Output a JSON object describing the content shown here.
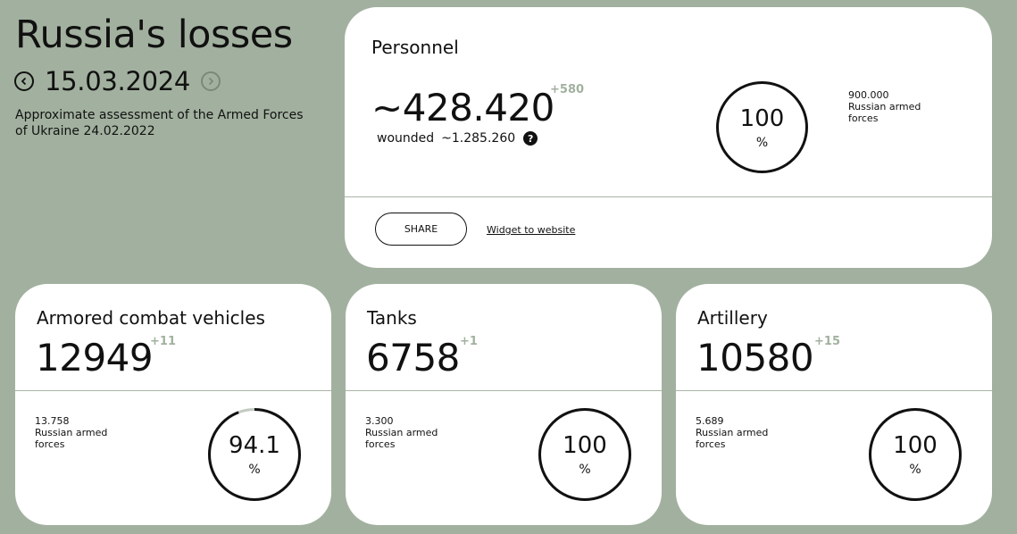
{
  "header": {
    "title": "Russia's losses",
    "date": "15.03.2024",
    "subtitle": "Approximate assessment of the Armed Forces of Ukraine 24.02.2022"
  },
  "personnel": {
    "title": "Personnel",
    "value": "~428.420",
    "delta": "+580",
    "wounded_label": "wounded",
    "wounded_value": "~1.285.260",
    "help_glyph": "?",
    "percent": "100",
    "percent_sign": "%",
    "total_value": "900.000",
    "total_label": "Russian armed forces",
    "share_label": "SHARE",
    "widget_label": "Widget to website"
  },
  "cards": [
    {
      "title": "Armored combat vehicles",
      "value": "12949",
      "delta": "+11",
      "total_value": "13.758",
      "total_label": "Russian armed forces",
      "percent": "94.1",
      "percent_fraction": 0.941,
      "percent_sign": "%"
    },
    {
      "title": "Tanks",
      "value": "6758",
      "delta": "+1",
      "total_value": "3.300",
      "total_label": "Russian armed forces",
      "percent": "100",
      "percent_fraction": 1.0,
      "percent_sign": "%"
    },
    {
      "title": "Artillery",
      "value": "10580",
      "delta": "+15",
      "total_value": "5.689",
      "total_label": "Russian armed forces",
      "percent": "100",
      "percent_fraction": 1.0,
      "percent_sign": "%"
    }
  ],
  "colors": {
    "background": "#a2b19f",
    "ring": "#111111",
    "ring_track": "#c3cbc1"
  }
}
